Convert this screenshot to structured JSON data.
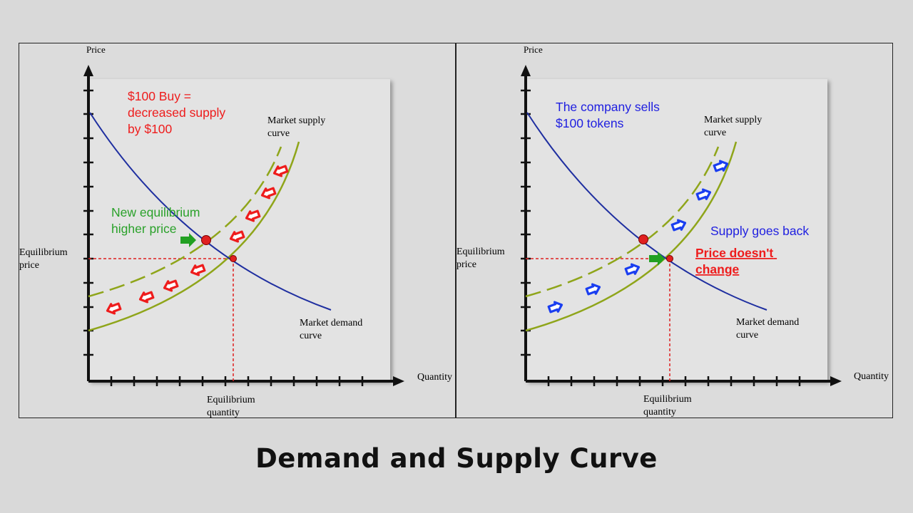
{
  "panels": [
    {
      "axis_labels": {
        "y": "Price",
        "x": "Quantity",
        "eq_price": [
          "Equilibrium",
          "price"
        ],
        "eq_quantity": [
          "Equilibrium",
          "quantity"
        ]
      },
      "curve_labels": {
        "supply": [
          "Market supply",
          "curve"
        ],
        "demand": [
          "Market demand",
          "curve"
        ]
      },
      "annotation_main": [
        "$100 Buy =",
        "decreased supply",
        "by $100"
      ],
      "annotation_secondary": [
        "New equilibrium",
        "higher price"
      ],
      "arrow_direction": "left"
    },
    {
      "axis_labels": {
        "y": "Price",
        "x": "Quantity",
        "eq_price": [
          "Equilibrium",
          "price"
        ],
        "eq_quantity": [
          "Equilibrium",
          "quantity"
        ]
      },
      "curve_labels": {
        "supply": [
          "Market supply",
          "curve"
        ],
        "demand": [
          "Market demand",
          "curve"
        ]
      },
      "annotation_main": [
        "The company sells",
        "$100 tokens"
      ],
      "annotation_secondary": [
        "Supply goes back"
      ],
      "annotation_emphasis": [
        "Price doesn't",
        "change"
      ],
      "arrow_direction": "right"
    }
  ],
  "caption": "Demand and Supply Curve",
  "colors": {
    "demand": "#1f2fa0",
    "supply": "#8fa51a",
    "eq_guides": "#e02020",
    "arrow_red": "#ee1c1c",
    "arrow_blue": "#1a3ef0",
    "arrow_green": "#22a022",
    "text_red": "#ee1c1c",
    "text_green": "#2aa12a",
    "text_blue": "#2020e0"
  }
}
